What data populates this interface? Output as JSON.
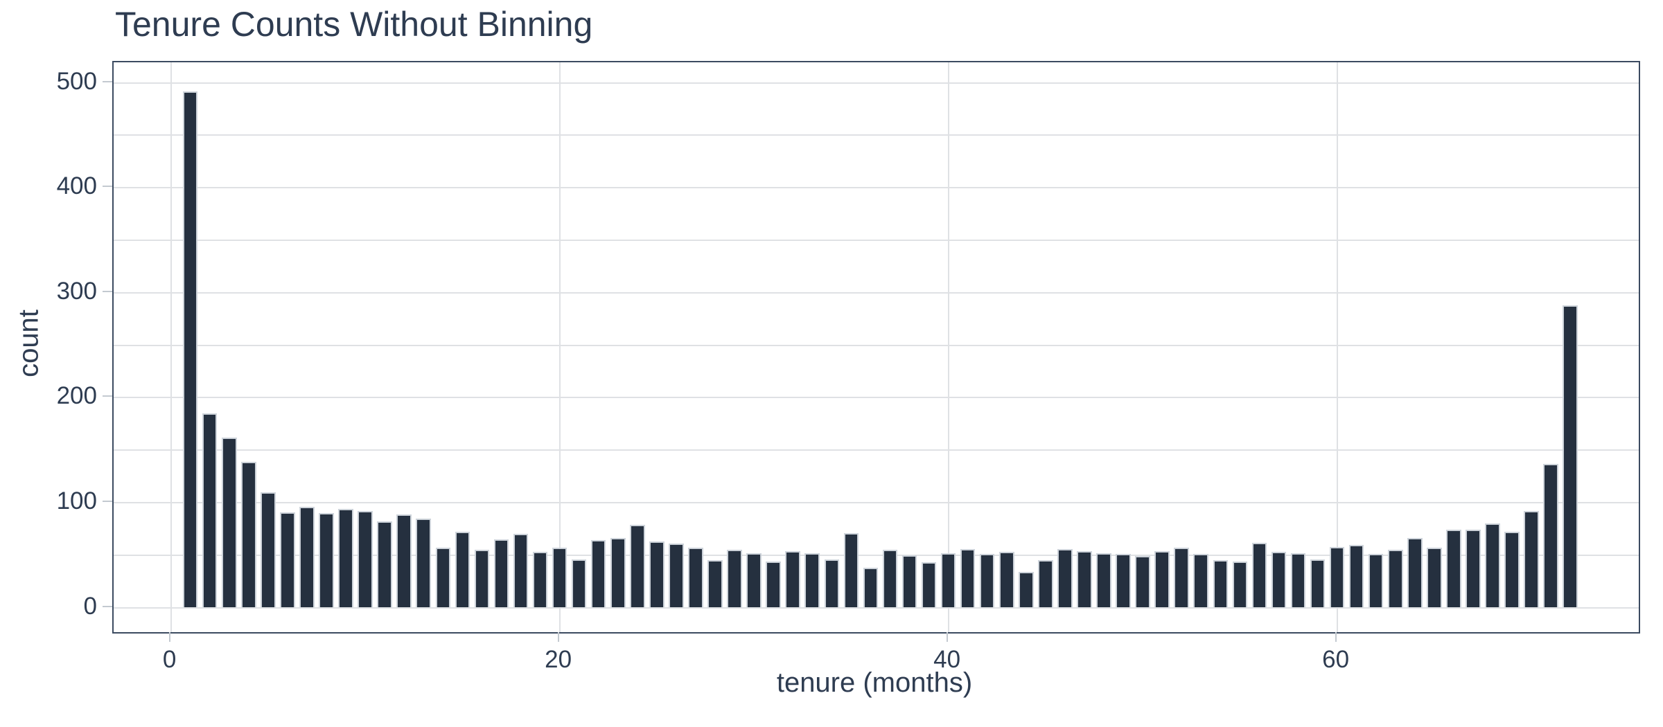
{
  "chart_data": {
    "type": "bar",
    "title": "Tenure Counts Without Binning",
    "xlabel": "tenure (months)",
    "ylabel": "count",
    "categories": [
      1,
      2,
      3,
      4,
      5,
      6,
      7,
      8,
      9,
      10,
      11,
      12,
      13,
      14,
      15,
      16,
      17,
      18,
      19,
      20,
      21,
      22,
      23,
      24,
      25,
      26,
      27,
      28,
      29,
      30,
      31,
      32,
      33,
      34,
      35,
      36,
      37,
      38,
      39,
      40,
      41,
      42,
      43,
      44,
      45,
      46,
      47,
      48,
      49,
      50,
      51,
      52,
      53,
      54,
      55,
      56,
      57,
      58,
      59,
      60,
      61,
      62,
      63,
      64,
      65,
      66,
      67,
      68,
      69,
      70,
      71,
      72
    ],
    "values": [
      492,
      185,
      162,
      139,
      110,
      91,
      96,
      90,
      94,
      92,
      82,
      89,
      85,
      57,
      72,
      55,
      65,
      70,
      53,
      57,
      46,
      64,
      66,
      79,
      63,
      61,
      57,
      45,
      55,
      52,
      44,
      54,
      52,
      46,
      71,
      38,
      55,
      50,
      43,
      52,
      56,
      51,
      53,
      34,
      45,
      56,
      54,
      52,
      51,
      49,
      54,
      57,
      51,
      45,
      44,
      62,
      53,
      52,
      46,
      58,
      60,
      51,
      55,
      66,
      57,
      74,
      74,
      80,
      72,
      92,
      137,
      288
    ],
    "x_ticks": [
      0,
      20,
      40,
      60
    ],
    "y_ticks": [
      0,
      100,
      200,
      300,
      400,
      500
    ],
    "y_grid_interval": 50,
    "y_grid_max": 500,
    "xlim": [
      -2.9,
      75.6
    ],
    "ylim": [
      -24.5,
      519
    ],
    "grid": true,
    "legend": "none",
    "colors": {
      "bar_fill": "#25303f",
      "bar_edge": "#cdd3da",
      "gridline": "#dfe1e4",
      "spine": "#3b4a60",
      "text": "#2e3c51",
      "background": "#ffffff"
    }
  }
}
